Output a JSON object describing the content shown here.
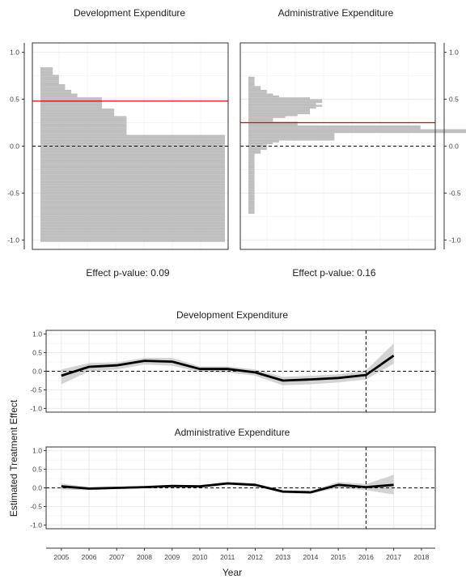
{
  "colors": {
    "histogram_fill": "#bebebe",
    "effect_line": "#e00000",
    "estimate_line": "#000000",
    "ci_band": "#d3d3d3",
    "grid": "#ebebeb"
  },
  "chart_data": [
    {
      "type": "bar",
      "orientation": "horizontal",
      "title": "Development Expenditure",
      "ylim": [
        -1.1,
        1.1
      ],
      "yticks": [
        -1.0,
        -0.5,
        0.0,
        0.5,
        1.0
      ],
      "ytick_labels": [
        "-1.0",
        "-0.5",
        "0.0",
        "0.5",
        "1.0"
      ],
      "bin_width": 0.02,
      "bins_y": [
        0.83,
        0.81,
        0.79,
        0.77,
        0.75,
        0.73,
        0.71,
        0.69,
        0.67,
        0.65,
        0.63,
        0.61,
        0.59,
        0.57,
        0.55,
        0.53,
        0.51,
        0.49,
        0.47,
        0.45,
        0.43,
        0.41,
        0.39,
        0.37,
        0.35,
        0.33,
        0.31,
        0.29,
        0.27,
        0.25,
        0.23,
        0.21,
        0.19,
        0.17,
        0.15,
        0.13,
        0.11,
        0.09,
        0.07,
        0.05,
        0.03,
        0.01,
        -0.01,
        -0.03,
        -0.05,
        -0.07,
        -0.09,
        -0.11,
        -0.13,
        -0.15,
        -0.17,
        -0.19,
        -0.21,
        -0.23,
        -0.25,
        -0.27,
        -0.29,
        -0.31,
        -0.33,
        -0.35,
        -0.37,
        -0.39,
        -0.41,
        -0.43,
        -0.45,
        -0.47,
        -0.49,
        -0.51,
        -0.53,
        -0.55,
        -0.57,
        -0.59,
        -0.61,
        -0.63,
        -0.65,
        -0.67,
        -0.69,
        -0.71,
        -0.73,
        -0.75,
        -0.77,
        -0.79,
        -0.81,
        -0.83,
        -0.85,
        -0.87,
        -0.89,
        -0.91,
        -0.93,
        -0.95,
        -0.97,
        -0.99,
        -1.01
      ],
      "counts": [
        2,
        2,
        2,
        2,
        3,
        3,
        3,
        3,
        3,
        4,
        4,
        4,
        5,
        5,
        6,
        6,
        10,
        10,
        10,
        10,
        10,
        10,
        12,
        12,
        12,
        12,
        14,
        14,
        14,
        14,
        14,
        14,
        14,
        14,
        14,
        14,
        30,
        30,
        30,
        30,
        30,
        30,
        30,
        30,
        30,
        30,
        30,
        30,
        30,
        30,
        30,
        30,
        30,
        30,
        30,
        30,
        30,
        30,
        30,
        30,
        30,
        30,
        30,
        30,
        30,
        30,
        30,
        30,
        30,
        30,
        30,
        30,
        30,
        30,
        30,
        30,
        30,
        30,
        30,
        30,
        30,
        30,
        30,
        30,
        30,
        30,
        30,
        30,
        30,
        30,
        30,
        30,
        30
      ],
      "effect": 0.48,
      "zero_line": 0.0
    },
    {
      "type": "bar",
      "orientation": "horizontal",
      "title": "Administrative Expenditure",
      "ylim": [
        -1.1,
        1.1
      ],
      "yticks": [
        -1.0,
        -0.5,
        0.0,
        0.5,
        1.0
      ],
      "ytick_labels": [
        "-1.0",
        "-0.5",
        "0.0",
        "0.5",
        "1.0"
      ],
      "bin_width": 0.02,
      "bins_y": [
        0.73,
        0.71,
        0.69,
        0.67,
        0.65,
        0.63,
        0.61,
        0.59,
        0.57,
        0.55,
        0.53,
        0.51,
        0.49,
        0.47,
        0.45,
        0.43,
        0.41,
        0.39,
        0.37,
        0.35,
        0.33,
        0.31,
        0.29,
        0.27,
        0.25,
        0.23,
        0.21,
        0.19,
        0.17,
        0.15,
        0.13,
        0.11,
        0.09,
        0.07,
        0.05,
        0.03,
        0.01,
        -0.01,
        -0.03,
        -0.05,
        -0.07,
        -0.09,
        -0.11,
        -0.13,
        -0.15,
        -0.17,
        -0.19,
        -0.21,
        -0.23,
        -0.25,
        -0.27,
        -0.29,
        -0.31,
        -0.33,
        -0.35,
        -0.37,
        -0.39,
        -0.41,
        -0.43,
        -0.45,
        -0.47,
        -0.49,
        -0.51,
        -0.53,
        -0.55,
        -0.57,
        -0.59,
        -0.61,
        -0.63,
        -0.65,
        -0.67,
        -0.69,
        -0.71,
        -0.73
      ],
      "counts": [
        1,
        1,
        1,
        1,
        1,
        2,
        2,
        3,
        3,
        4,
        5,
        10,
        12,
        12,
        11,
        12,
        11,
        10,
        10,
        10,
        8,
        6,
        4,
        4,
        8,
        8,
        28,
        28,
        40,
        40,
        14,
        14,
        14,
        14,
        5,
        4,
        3,
        3,
        3,
        2,
        2,
        1,
        1,
        1,
        1,
        1,
        1,
        1,
        1,
        1,
        1,
        1,
        1,
        1,
        1,
        1,
        1,
        1,
        1,
        1,
        1,
        1,
        1,
        1,
        1,
        1,
        1,
        1,
        1,
        1,
        1,
        1,
        1
      ],
      "effect": 0.25,
      "zero_line": 0.0
    },
    {
      "type": "line",
      "title": "Development Expenditure",
      "x": [
        2005,
        2006,
        2007,
        2008,
        2009,
        2010,
        2011,
        2012,
        2013,
        2014,
        2015,
        2016,
        2017
      ],
      "y": [
        -0.12,
        0.12,
        0.16,
        0.28,
        0.26,
        0.06,
        0.06,
        -0.03,
        -0.25,
        -0.22,
        -0.18,
        -0.1,
        0.42
      ],
      "ci_low": [
        -0.35,
        0.0,
        0.05,
        0.18,
        0.15,
        -0.02,
        -0.03,
        -0.12,
        -0.38,
        -0.35,
        -0.3,
        -0.22,
        0.2
      ],
      "ci_high": [
        0.05,
        0.22,
        0.24,
        0.36,
        0.36,
        0.13,
        0.13,
        0.05,
        -0.15,
        -0.12,
        -0.08,
        0.02,
        0.75
      ],
      "xlim": [
        2004.45,
        2018.5
      ],
      "ylim": [
        -1.1,
        1.1
      ],
      "yticks": [
        -1.0,
        -0.5,
        0.0,
        0.5,
        1.0
      ],
      "ytick_labels": [
        "-1.0",
        "-0.5",
        "0.0",
        "0.5",
        "1.0"
      ],
      "vline_x": 2016,
      "zero_line": 0.0
    },
    {
      "type": "line",
      "title": "Administrative Expenditure",
      "x": [
        2005,
        2006,
        2007,
        2008,
        2009,
        2010,
        2011,
        2012,
        2013,
        2014,
        2015,
        2016,
        2017
      ],
      "y": [
        0.04,
        -0.02,
        0.0,
        0.02,
        0.05,
        0.04,
        0.12,
        0.08,
        -0.1,
        -0.12,
        0.08,
        0.02,
        0.08
      ],
      "ci_low": [
        -0.05,
        -0.06,
        -0.03,
        -0.01,
        0.02,
        0.01,
        0.08,
        0.04,
        -0.14,
        -0.16,
        0.0,
        -0.06,
        -0.18
      ],
      "ci_high": [
        0.12,
        0.02,
        0.03,
        0.05,
        0.08,
        0.07,
        0.16,
        0.12,
        -0.06,
        -0.08,
        0.16,
        0.1,
        0.35
      ],
      "xlim": [
        2004.45,
        2018.5
      ],
      "ylim": [
        -1.1,
        1.1
      ],
      "yticks": [
        -1.0,
        -0.5,
        0.0,
        0.5,
        1.0
      ],
      "ytick_labels": [
        "-1.0",
        "-0.5",
        "0.0",
        "0.5",
        "1.0"
      ],
      "vline_x": 2016,
      "zero_line": 0.0
    }
  ],
  "pvalues": {
    "development": "Effect p-value:  0.09",
    "administrative": "Effect p-value:  0.16"
  },
  "xaxis": {
    "ticks": [
      2005,
      2006,
      2007,
      2008,
      2009,
      2010,
      2011,
      2012,
      2013,
      2014,
      2015,
      2016,
      2017,
      2018
    ],
    "tick_labels": [
      "2005",
      "2006",
      "2007",
      "2008",
      "2009",
      "2010",
      "2011",
      "2012",
      "2013",
      "2014",
      "2015",
      "2016",
      "2017",
      "2018"
    ],
    "label": "Year"
  },
  "ylabel": "Estimated Treatment Effect"
}
